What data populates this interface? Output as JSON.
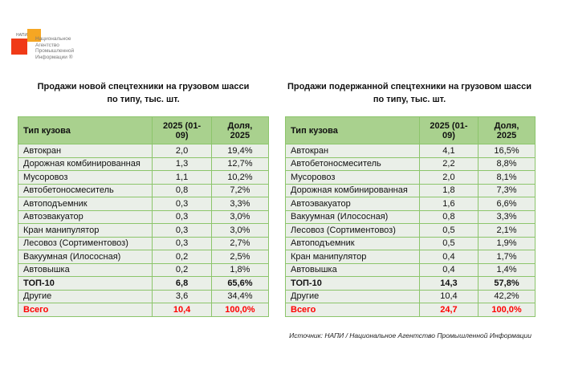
{
  "logo": {
    "abbr": "НАПИ",
    "text": "Национальное Агентство Промышленной Информации ®"
  },
  "tables": [
    {
      "title_line1": "Продажи новой спецтехники на грузовом шасси",
      "title_line2": "по типу, тыс. шт.",
      "headers": [
        "Тип кузова",
        "2025 (01-09)",
        "Доля, 2025"
      ],
      "rows": [
        [
          "Автокран",
          "2,0",
          "19,4%"
        ],
        [
          "Дорожная комбинированная",
          "1,3",
          "12,7%"
        ],
        [
          "Мусоровоз",
          "1,1",
          "10,2%"
        ],
        [
          "Автобетоносмеситель",
          "0,8",
          "7,2%"
        ],
        [
          "Автоподъемник",
          "0,3",
          "3,3%"
        ],
        [
          "Автоэвакуатор",
          "0,3",
          "3,0%"
        ],
        [
          "Кран манипулятор",
          "0,3",
          "3,0%"
        ],
        [
          "Лесовоз (Сортиментовоз)",
          "0,3",
          "2,7%"
        ],
        [
          "Вакуумная (Илососная)",
          "0,2",
          "2,5%"
        ],
        [
          "Автовышка",
          "0,2",
          "1,8%"
        ]
      ],
      "top10": [
        "ТОП-10",
        "6,8",
        "65,6%"
      ],
      "other": [
        "Другие",
        "3,6",
        "34,4%"
      ],
      "total": [
        "Всего",
        "10,4",
        "100,0%"
      ]
    },
    {
      "title_line1": "Продажи подержанной спецтехники на грузовом шасси",
      "title_line2": "по типу, тыс. шт.",
      "headers": [
        "Тип кузова",
        "2025 (01-09)",
        "Доля, 2025"
      ],
      "rows": [
        [
          "Автокран",
          "4,1",
          "16,5%"
        ],
        [
          "Автобетоносмеситель",
          "2,2",
          "8,8%"
        ],
        [
          "Мусоровоз",
          "2,0",
          "8,1%"
        ],
        [
          "Дорожная комбинированная",
          "1,8",
          "7,3%"
        ],
        [
          "Автоэвакуатор",
          "1,6",
          "6,6%"
        ],
        [
          "Вакуумная (Илососная)",
          "0,8",
          "3,3%"
        ],
        [
          "Лесовоз (Сортиментовоз)",
          "0,5",
          "2,1%"
        ],
        [
          "Автоподъемник",
          "0,5",
          "1,9%"
        ],
        [
          "Кран манипулятор",
          "0,4",
          "1,7%"
        ],
        [
          "Автовышка",
          "0,4",
          "1,4%"
        ]
      ],
      "top10": [
        "ТОП-10",
        "14,3",
        "57,8%"
      ],
      "other": [
        "Другие",
        "10,4",
        "42,2%"
      ],
      "total": [
        "Всего",
        "24,7",
        "100,0%"
      ]
    }
  ],
  "source": "Источник: НАПИ / Национальное Агентство Промышленной Информации",
  "colors": {
    "header": "#a9d18e",
    "border": "#8cc56b",
    "total": "#ff0000"
  }
}
